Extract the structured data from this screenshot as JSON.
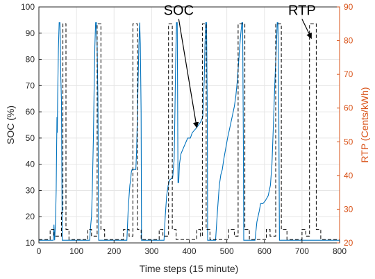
{
  "chart_data": {
    "type": "line",
    "xlabel": "Time steps (15 minute)",
    "ylabel_left": "SOC (%)",
    "ylabel_right": "RTP (Cents/kWh)",
    "xlim": [
      0,
      800
    ],
    "ylim_left": [
      10,
      100
    ],
    "ylim_right": [
      20,
      90
    ],
    "x_ticks": [
      "0",
      "100",
      "200",
      "300",
      "400",
      "500",
      "600",
      "700",
      "800"
    ],
    "y_ticks_left": [
      "10",
      "20",
      "30",
      "40",
      "50",
      "60",
      "70",
      "80",
      "90",
      "100"
    ],
    "y_ticks_right": [
      "20",
      "30",
      "40",
      "50",
      "60",
      "70",
      "80",
      "90"
    ],
    "grid": true,
    "colors": {
      "soc": "#0072bd",
      "rtp": "#000000",
      "right_axis": "#d95319"
    },
    "annotations": [
      {
        "text": "SOC",
        "x": 372,
        "y": 97,
        "arrow_to": [
          420,
          54
        ]
      },
      {
        "text": "RTP",
        "x": 700,
        "y": 97,
        "arrow_to": [
          725,
          88
        ]
      }
    ],
    "series": [
      {
        "axis": "left",
        "style": "solid",
        "points": [
          [
            0,
            11
          ],
          [
            38,
            11
          ],
          [
            40,
            17
          ],
          [
            42,
            11
          ],
          [
            44,
            17
          ],
          [
            46,
            30
          ],
          [
            48,
            58
          ],
          [
            49,
            52
          ],
          [
            50,
            67
          ],
          [
            52,
            84
          ],
          [
            54,
            94
          ],
          [
            56,
            94
          ],
          [
            57,
            86
          ],
          [
            58,
            75
          ],
          [
            60,
            64
          ],
          [
            61,
            40
          ],
          [
            62,
            11
          ],
          [
            100,
            11
          ],
          [
            135,
            11
          ],
          [
            138,
            17
          ],
          [
            140,
            20
          ],
          [
            142,
            30
          ],
          [
            145,
            50
          ],
          [
            147,
            70
          ],
          [
            149,
            85
          ],
          [
            151,
            94
          ],
          [
            153,
            94
          ],
          [
            155,
            85
          ],
          [
            157,
            65
          ],
          [
            158,
            40
          ],
          [
            159,
            11
          ],
          [
            200,
            11
          ],
          [
            234,
            11
          ],
          [
            238,
            24
          ],
          [
            240,
            28
          ],
          [
            242,
            32
          ],
          [
            244,
            34
          ],
          [
            246,
            37
          ],
          [
            248,
            38
          ],
          [
            258,
            38
          ],
          [
            260,
            45
          ],
          [
            262,
            58
          ],
          [
            264,
            72
          ],
          [
            266,
            85
          ],
          [
            268,
            94
          ],
          [
            270,
            86
          ],
          [
            272,
            60
          ],
          [
            273,
            11
          ],
          [
            300,
            11
          ],
          [
            333,
            11
          ],
          [
            336,
            20
          ],
          [
            340,
            28
          ],
          [
            344,
            32
          ],
          [
            348,
            34
          ],
          [
            356,
            35
          ],
          [
            360,
            42
          ],
          [
            362,
            60
          ],
          [
            364,
            80
          ],
          [
            366,
            94
          ],
          [
            368,
            94
          ],
          [
            369,
            70
          ],
          [
            370,
            33
          ],
          [
            372,
            33
          ],
          [
            374,
            40
          ],
          [
            378,
            44
          ],
          [
            384,
            46
          ],
          [
            390,
            48
          ],
          [
            396,
            50
          ],
          [
            403,
            50
          ],
          [
            408,
            52
          ],
          [
            420,
            54
          ],
          [
            430,
            56
          ],
          [
            436,
            58
          ],
          [
            440,
            72
          ],
          [
            442,
            86
          ],
          [
            444,
            94
          ],
          [
            446,
            94
          ],
          [
            448,
            60
          ],
          [
            449,
            11
          ],
          [
            470,
            11
          ],
          [
            475,
            22
          ],
          [
            480,
            32
          ],
          [
            484,
            36
          ],
          [
            488,
            38
          ],
          [
            492,
            42
          ],
          [
            497,
            46
          ],
          [
            502,
            50
          ],
          [
            508,
            54
          ],
          [
            514,
            58
          ],
          [
            520,
            62
          ],
          [
            524,
            66
          ],
          [
            528,
            72
          ],
          [
            532,
            80
          ],
          [
            536,
            88
          ],
          [
            540,
            94
          ],
          [
            542,
            94
          ],
          [
            544,
            50
          ],
          [
            545,
            11
          ],
          [
            575,
            11
          ],
          [
            580,
            18
          ],
          [
            586,
            22
          ],
          [
            590,
            25
          ],
          [
            596,
            25
          ],
          [
            602,
            26
          ],
          [
            610,
            28
          ],
          [
            616,
            32
          ],
          [
            620,
            40
          ],
          [
            624,
            55
          ],
          [
            628,
            72
          ],
          [
            632,
            86
          ],
          [
            634,
            94
          ],
          [
            636,
            94
          ],
          [
            638,
            70
          ],
          [
            640,
            11
          ],
          [
            700,
            11
          ],
          [
            800,
            11
          ]
        ]
      },
      {
        "axis": "right",
        "style": "dashed",
        "points": [
          [
            0,
            21
          ],
          [
            30,
            21
          ],
          [
            30,
            24
          ],
          [
            40,
            24
          ],
          [
            40,
            22
          ],
          [
            60,
            22
          ],
          [
            60,
            29
          ],
          [
            64,
            29
          ],
          [
            64,
            85
          ],
          [
            72,
            85
          ],
          [
            72,
            24
          ],
          [
            80,
            24
          ],
          [
            80,
            21
          ],
          [
            130,
            21
          ],
          [
            130,
            24
          ],
          [
            140,
            24
          ],
          [
            140,
            22
          ],
          [
            155,
            22
          ],
          [
            155,
            85
          ],
          [
            165,
            85
          ],
          [
            165,
            24
          ],
          [
            175,
            24
          ],
          [
            175,
            21
          ],
          [
            225,
            21
          ],
          [
            225,
            24
          ],
          [
            240,
            24
          ],
          [
            240,
            22
          ],
          [
            250,
            22
          ],
          [
            250,
            85
          ],
          [
            262,
            85
          ],
          [
            262,
            24
          ],
          [
            272,
            24
          ],
          [
            272,
            21
          ],
          [
            320,
            21
          ],
          [
            320,
            24
          ],
          [
            330,
            24
          ],
          [
            330,
            22
          ],
          [
            345,
            22
          ],
          [
            345,
            85
          ],
          [
            355,
            85
          ],
          [
            355,
            24
          ],
          [
            365,
            24
          ],
          [
            365,
            21
          ],
          [
            420,
            21
          ],
          [
            420,
            24
          ],
          [
            430,
            24
          ],
          [
            430,
            22
          ],
          [
            435,
            22
          ],
          [
            435,
            85
          ],
          [
            445,
            85
          ],
          [
            445,
            24
          ],
          [
            455,
            24
          ],
          [
            455,
            21
          ],
          [
            505,
            21
          ],
          [
            505,
            24
          ],
          [
            520,
            24
          ],
          [
            520,
            22
          ],
          [
            530,
            22
          ],
          [
            530,
            85
          ],
          [
            548,
            85
          ],
          [
            548,
            24
          ],
          [
            560,
            24
          ],
          [
            560,
            21
          ],
          [
            605,
            21
          ],
          [
            605,
            24
          ],
          [
            615,
            24
          ],
          [
            615,
            22
          ],
          [
            630,
            22
          ],
          [
            630,
            85
          ],
          [
            645,
            85
          ],
          [
            645,
            24
          ],
          [
            660,
            24
          ],
          [
            660,
            21
          ],
          [
            700,
            21
          ],
          [
            700,
            24
          ],
          [
            710,
            24
          ],
          [
            710,
            22
          ],
          [
            720,
            22
          ],
          [
            720,
            85
          ],
          [
            738,
            85
          ],
          [
            738,
            24
          ],
          [
            750,
            24
          ],
          [
            750,
            21
          ],
          [
            800,
            21
          ]
        ]
      }
    ]
  }
}
